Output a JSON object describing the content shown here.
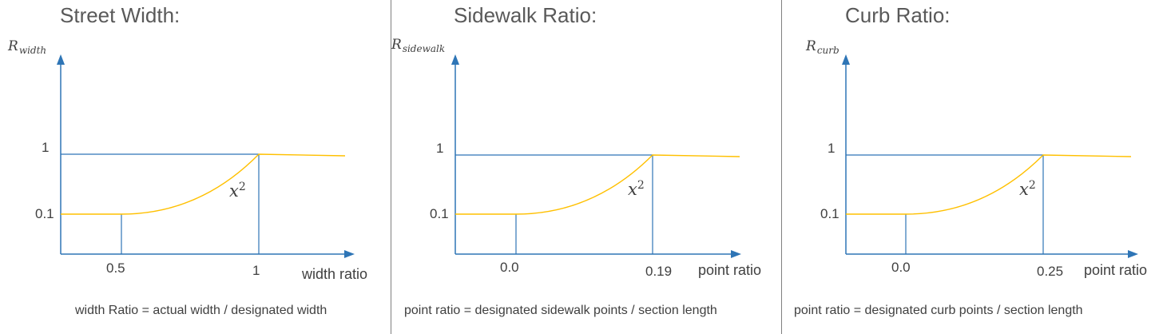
{
  "colors": {
    "axis": "#2E75B6",
    "curve": "#FFC000",
    "text": "#404040",
    "title": "#595959",
    "divider": "#808080"
  },
  "panels": [
    {
      "title": "Street Width:",
      "y_label_main": "R",
      "y_label_sub": "width",
      "y_ticks": [
        "1",
        "0.1"
      ],
      "x_tick_low": "0.5",
      "x_tick_high": "1",
      "x_axis_name": "width ratio",
      "curve_label": "x",
      "curve_exponent": "2",
      "formula": "width Ratio = actual width / designated width"
    },
    {
      "title": "Sidewalk Ratio:",
      "y_label_main": "R",
      "y_label_sub": "sidewalk",
      "y_ticks": [
        "1",
        "0.1"
      ],
      "x_tick_low": "0.0",
      "x_tick_high": "0.19",
      "x_axis_name": "point ratio",
      "curve_label": "x",
      "curve_exponent": "2",
      "formula": "point ratio = designated sidewalk points / section length"
    },
    {
      "title": "Curb Ratio:",
      "y_label_main": "R",
      "y_label_sub": "curb",
      "y_ticks": [
        "1",
        "0.1"
      ],
      "x_tick_low": "0.0",
      "x_tick_high": "0.25",
      "x_axis_name": "point ratio",
      "curve_label": "x",
      "curve_exponent": "2",
      "formula": "point ratio = designated curb points / section length"
    }
  ]
}
